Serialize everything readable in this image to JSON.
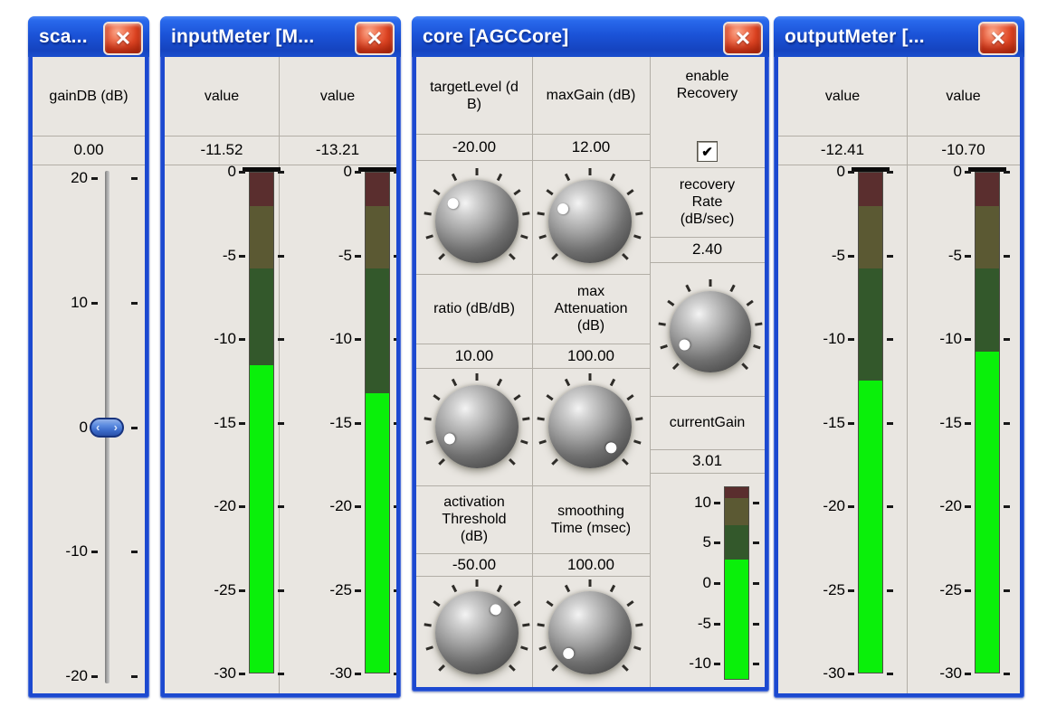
{
  "colors": {
    "meter_bright": "#0af00a",
    "zone_red": "#5a2e2e",
    "zone_olive": "#5b5933",
    "zone_green": "#33582b",
    "frame_blue": "#1c49d0",
    "content_bg": "#e9e6e1"
  },
  "icons": {
    "close_glyph": "✕",
    "checkbox_check": "✔",
    "thumb_glyphs": [
      "‹",
      "›"
    ]
  },
  "meter_scales": {
    "big": {
      "max": 0,
      "min": -30,
      "cap": true,
      "zones": [
        {
          "to": -2,
          "color": "#5a2e2e"
        },
        {
          "to": -5.75,
          "color": "#5b5933"
        },
        {
          "to": -30,
          "color": "#33582b"
        }
      ],
      "ticks": [
        {
          "v": 0,
          "label": "0"
        },
        {
          "v": -5,
          "label": "-5"
        },
        {
          "v": -10,
          "label": "-10"
        },
        {
          "v": -15,
          "label": "-15"
        },
        {
          "v": -20,
          "label": "-20"
        },
        {
          "v": -25,
          "label": "-25"
        },
        {
          "v": -30,
          "label": "-30"
        }
      ]
    },
    "gain": {
      "max": 12,
      "min": -12,
      "cap": false,
      "zones": [
        {
          "to": 10.6,
          "color": "#5a2e2e"
        },
        {
          "to": 7.25,
          "color": "#5b5933"
        },
        {
          "to": -12,
          "color": "#33582b"
        }
      ],
      "ticks": [
        {
          "v": 10,
          "label": "10"
        },
        {
          "v": 5,
          "label": "5"
        },
        {
          "v": 0,
          "label": "0"
        },
        {
          "v": -5,
          "label": "-5"
        },
        {
          "v": -10,
          "label": "-10"
        }
      ]
    }
  },
  "panels": {
    "scale": {
      "title": "sca...",
      "param_label": "gainDB (dB)",
      "value": "0.00",
      "slider": {
        "max": 20,
        "min": -20,
        "value": 0,
        "ticks": [
          {
            "v": 20,
            "label": "20"
          },
          {
            "v": 10,
            "label": "10"
          },
          {
            "v": 0,
            "label": "0"
          },
          {
            "v": -10,
            "label": "-10"
          },
          {
            "v": -20,
            "label": "-20"
          }
        ]
      }
    },
    "input_meter": {
      "title": "inputMeter [M...",
      "channels": [
        {
          "header": "value",
          "value": "-11.52",
          "level": -11.52
        },
        {
          "header": "value",
          "value": "-13.21",
          "level": -13.21
        }
      ]
    },
    "core": {
      "title": "core [AGCCore]",
      "params": [
        {
          "id": "targetLevel",
          "label": "targetLevel (d\nB)",
          "value": "-20.00",
          "dot_angle": -53
        },
        {
          "id": "maxGain",
          "label": "maxGain (dB)",
          "value": "12.00",
          "dot_angle": -65
        },
        {
          "id": "ratio",
          "label": "ratio (dB/dB)",
          "value": "10.00",
          "dot_angle": -114
        },
        {
          "id": "maxAttenuation",
          "label": "max\nAttenuation\n(dB)",
          "value": "100.00",
          "dot_angle": 135
        },
        {
          "id": "activationThreshold",
          "label": "activation\nThreshold\n(dB)",
          "value": "-50.00",
          "dot_angle": 39
        },
        {
          "id": "smoothingTime",
          "label": "smoothing\nTime (msec)",
          "value": "100.00",
          "dot_angle": -134
        }
      ],
      "enable_recovery": {
        "label": "enable\nRecovery",
        "checked": true
      },
      "recovery_rate": {
        "label": "recovery\nRate\n(dB/sec)",
        "value": "2.40",
        "dot_angle": -117
      },
      "current_gain": {
        "label": "currentGain",
        "value": "3.01",
        "level": 3.01
      }
    },
    "output_meter": {
      "title": "outputMeter [...",
      "channels": [
        {
          "header": "value",
          "value": "-12.41",
          "level": -12.41
        },
        {
          "header": "value",
          "value": "-10.70",
          "level": -10.7
        }
      ]
    }
  }
}
